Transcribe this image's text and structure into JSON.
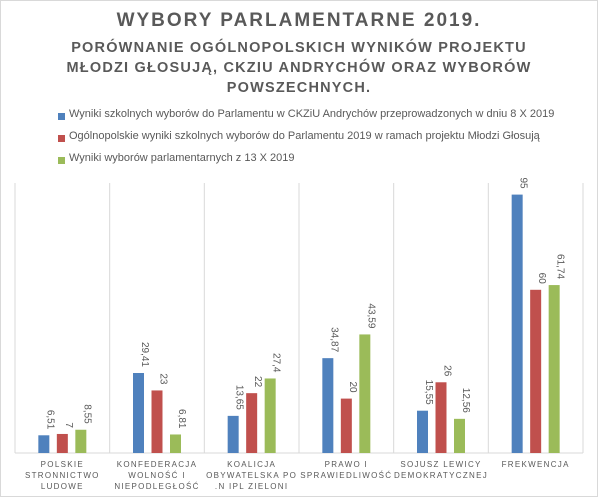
{
  "title": "WYBORY PARLAMENTARNE 2019.",
  "subtitle_lines": [
    "PORÓWNANIE OGÓLNOPOLSKICH WYNIKÓW PROJEKTU",
    "MŁODZI GŁOSUJĄ, CKZIU ANDRYCHÓW ORAZ WYBORÓW",
    "POWSZECHNYCH."
  ],
  "colors": {
    "blue": "#4f81bd",
    "red": "#c0504d",
    "green": "#9bbb59",
    "grid": "#d9d9d9",
    "axis": "#d9d9d9"
  },
  "chart_data": {
    "type": "bar",
    "title": "WYBORY PARLAMENTARNE 2019.",
    "subtitle": "PORÓWNANIE OGÓLNOPOLSKICH WYNIKÓW PROJEKTU MŁODZI GŁOSUJĄ, CKZIU ANDRYCHÓW ORAZ WYBORÓW POWSZECHNYCH.",
    "legend_position": "top",
    "grid": "vertical category separators",
    "categories": [
      [
        "POLSKIE",
        "STRONNICTWO",
        "LUDOWE"
      ],
      [
        "KONFEDERACJA",
        "WOLNOŚĆ I",
        "NIEPODLEGŁOŚĆ"
      ],
      [
        "KOALICJA",
        "OBYWATELSKA PO",
        ".N IPL ZIELONI"
      ],
      [
        "PRAWO I",
        "SPRAWIEDLIWOŚĆ"
      ],
      [
        "SOJUSZ LEWICY",
        "DEMOKRATYCZNEJ"
      ],
      [
        "FREKWENCJA"
      ]
    ],
    "series": [
      {
        "name": "Wyniki szkolnych wyborów do Parlamentu w CKZiU Andrychów przeprowadzonych w dniu 8 X 2019",
        "color": "#4f81bd",
        "values": [
          6.51,
          29.41,
          13.65,
          34.87,
          15.55,
          95
        ],
        "labels": [
          "6,51",
          "29,41",
          "13,65",
          "34,87",
          "15,55",
          "95"
        ]
      },
      {
        "name": "Ogólnopolskie wyniki szkolnych wyborów do Parlamentu 2019 w ramach projektu Młodzi Głosują",
        "color": "#c0504d",
        "values": [
          7,
          23,
          22,
          20,
          26,
          60
        ],
        "labels": [
          "7",
          "23",
          "22",
          "20",
          "26",
          "60"
        ]
      },
      {
        "name": "Wyniki wyborów parlamentarnych z 13 X 2019",
        "color": "#9bbb59",
        "values": [
          8.55,
          6.81,
          27.4,
          43.59,
          12.56,
          61.74
        ],
        "labels": [
          "8,55",
          "6,81",
          "27,4",
          "43,59",
          "12,56",
          "61,74"
        ]
      }
    ],
    "ylim": [
      0,
      100
    ]
  }
}
